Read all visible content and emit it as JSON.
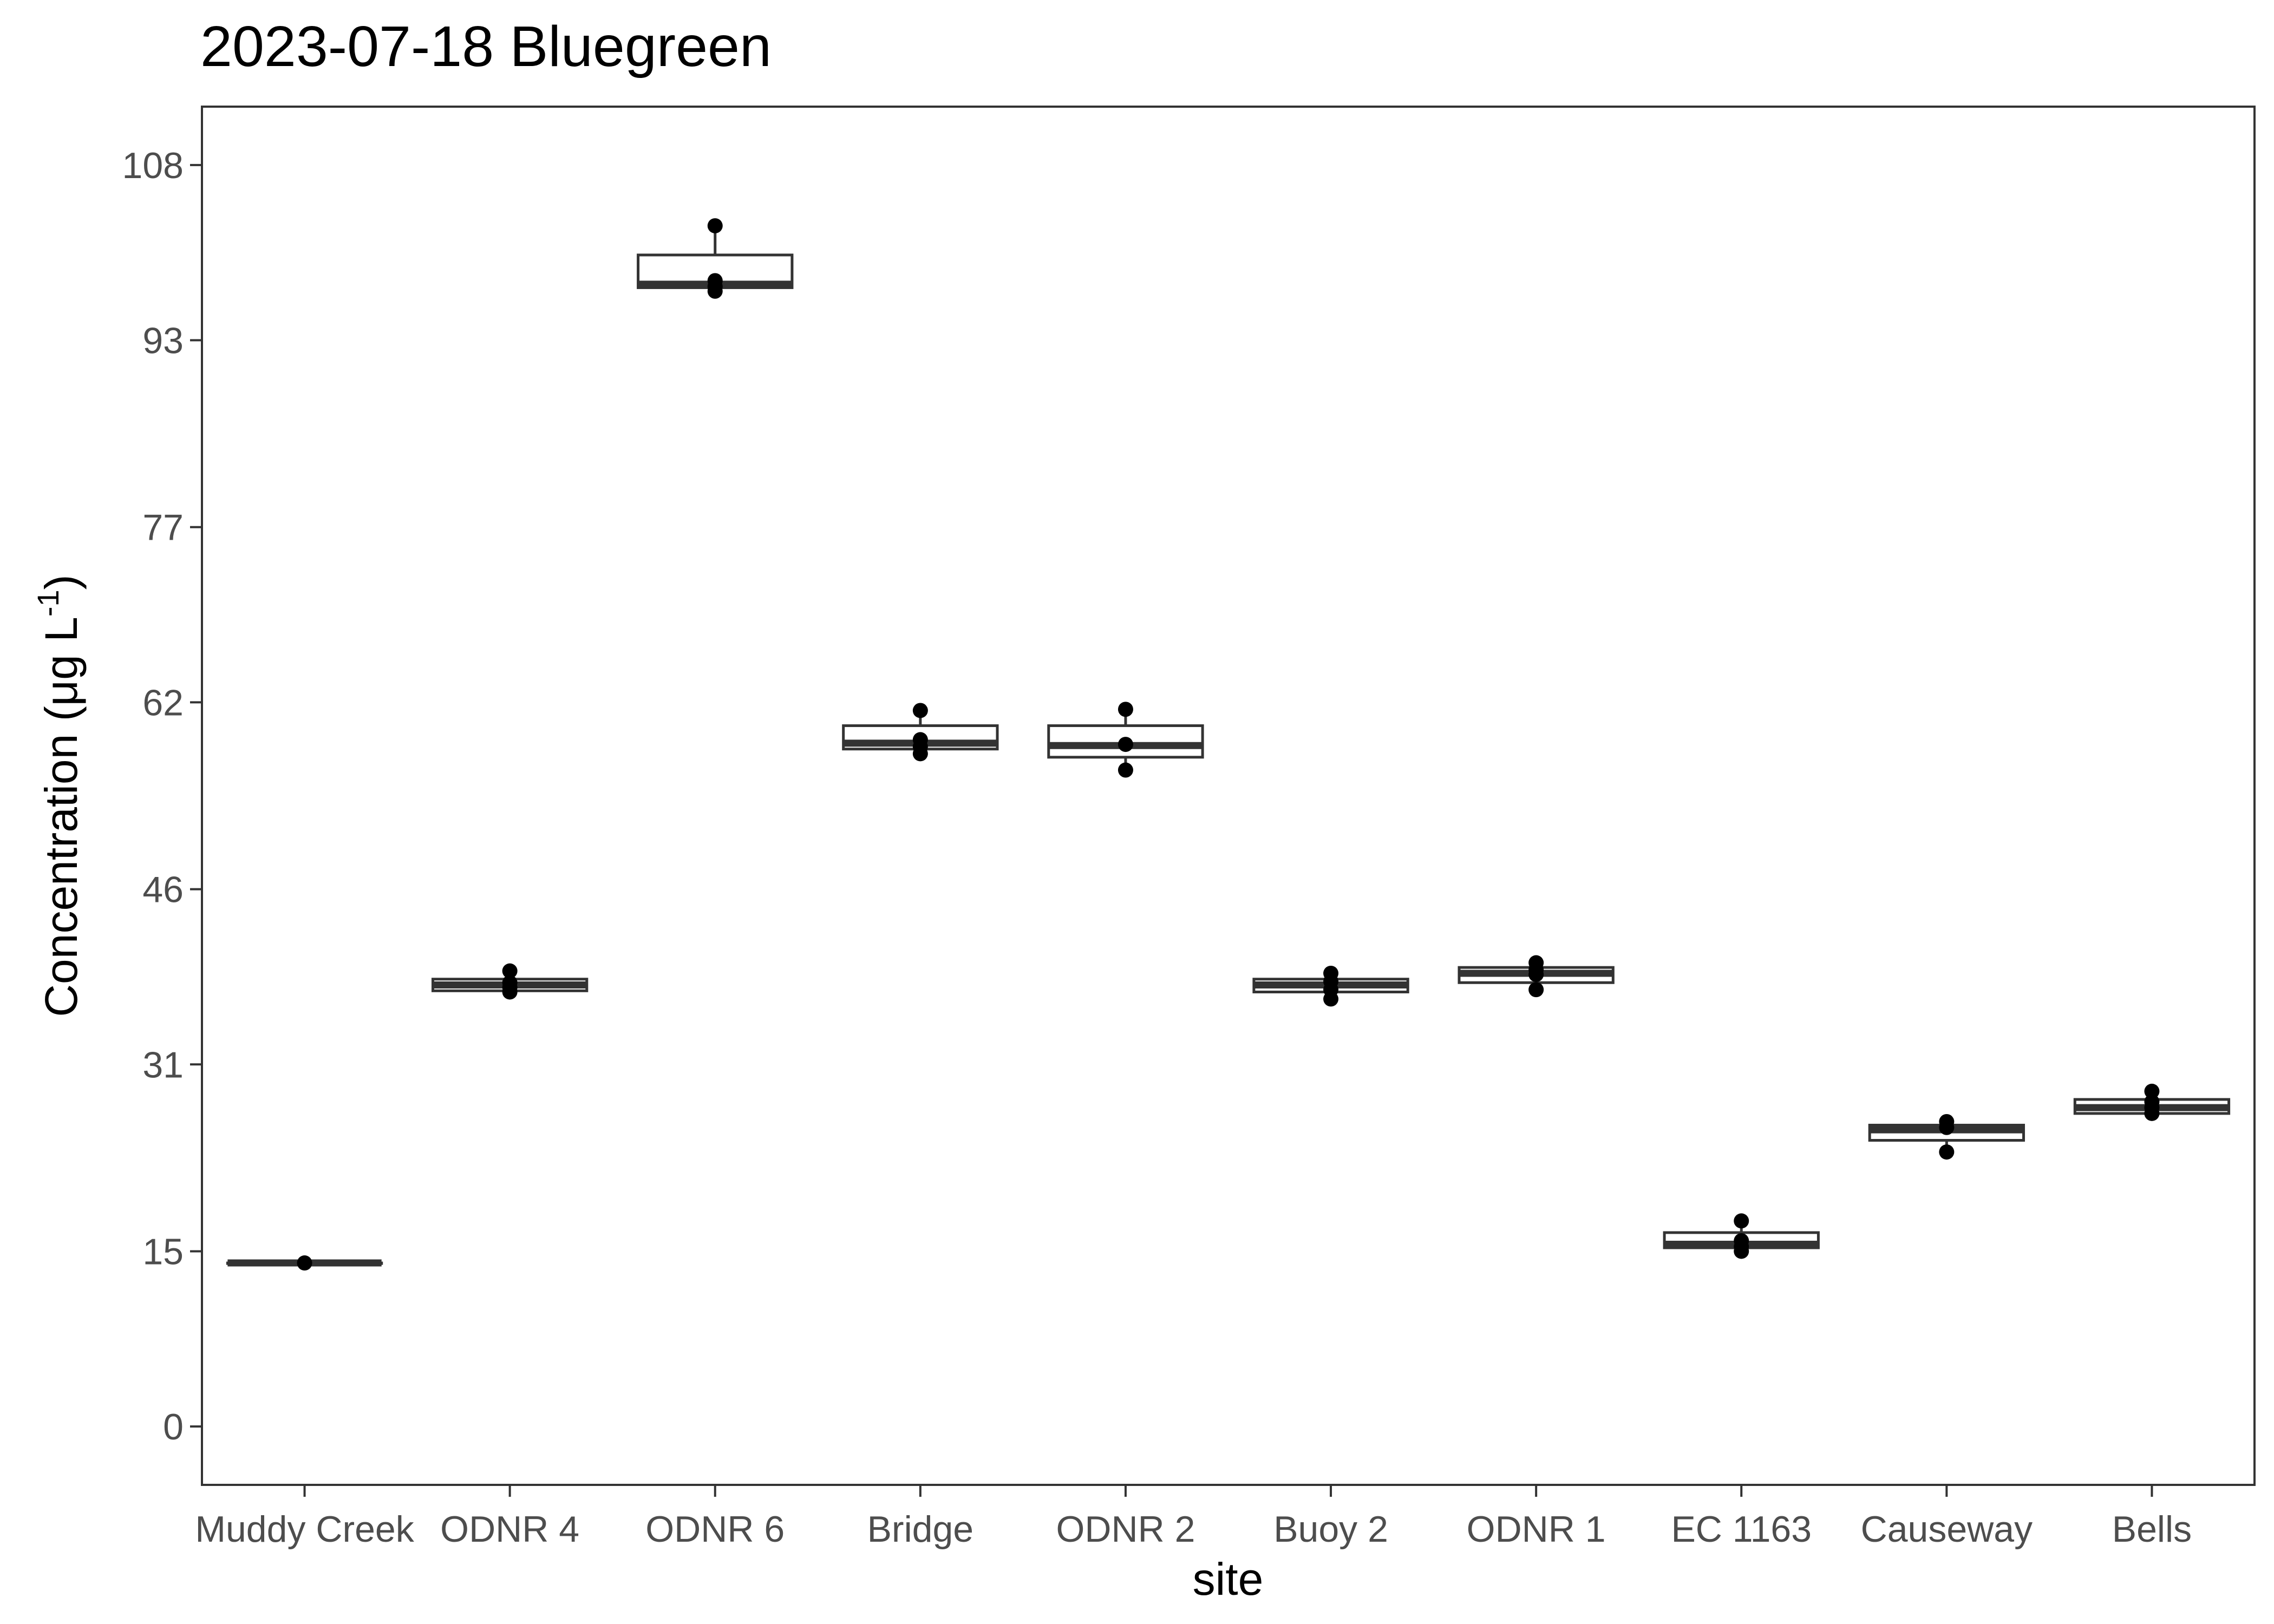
{
  "chart_data": {
    "type": "boxplot",
    "title": "2023-07-18 Bluegreen",
    "xlabel": "site",
    "ylabel": "Concentration (μg L",
    "ylabel_superscript": "-1",
    "ylabel_suffix": ")",
    "ylim": [
      -5,
      113
    ],
    "yticks": [
      0,
      15,
      31,
      46,
      62,
      77,
      93,
      108
    ],
    "ytick_labels": [
      "0",
      "15",
      "31",
      "46",
      "62",
      "77",
      "93",
      "108"
    ],
    "categories": [
      "Muddy Creek",
      "ODNR 4",
      "ODNR 6",
      "Bridge",
      "ODNR 2",
      "Buoy 2",
      "ODNR 1",
      "EC 1163",
      "Causeway",
      "Bells"
    ],
    "boxes": [
      {
        "site": "Muddy Creek",
        "lower_whisker": 14.0,
        "q1": 14.0,
        "median": 14.0,
        "q3": 14.0,
        "upper_whisker": 14.0,
        "points": [
          14.0
        ]
      },
      {
        "site": "ODNR 4",
        "lower_whisker": 37.3,
        "q1": 37.3,
        "median": 37.8,
        "q3": 38.3,
        "upper_whisker": 38.8,
        "points": [
          37.2,
          37.6,
          38.0,
          39.0
        ]
      },
      {
        "site": "ODNR 6",
        "lower_whisker": 97.5,
        "q1": 97.5,
        "median": 97.8,
        "q3": 100.3,
        "upper_whisker": 103.0,
        "points": [
          97.2,
          97.6,
          98.1,
          102.8
        ]
      },
      {
        "site": "Bridge",
        "lower_whisker": 58.0,
        "q1": 58.0,
        "median": 58.5,
        "q3": 60.0,
        "upper_whisker": 61.3,
        "points": [
          57.6,
          58.2,
          58.8,
          61.3
        ]
      },
      {
        "site": "ODNR 2",
        "lower_whisker": 56.2,
        "q1": 57.3,
        "median": 58.3,
        "q3": 60.0,
        "upper_whisker": 61.4,
        "points": [
          56.2,
          58.4,
          61.4
        ]
      },
      {
        "site": "Buoy 2",
        "lower_whisker": 36.6,
        "q1": 37.2,
        "median": 37.8,
        "q3": 38.3,
        "upper_whisker": 38.8,
        "points": [
          36.6,
          37.4,
          38.1,
          38.8
        ]
      },
      {
        "site": "ODNR 1",
        "lower_whisker": 37.4,
        "q1": 38.0,
        "median": 38.8,
        "q3": 39.3,
        "upper_whisker": 39.7,
        "points": [
          37.4,
          38.7,
          39.1,
          39.7
        ]
      },
      {
        "site": "EC 1163",
        "lower_whisker": 15.0,
        "q1": 15.3,
        "median": 15.6,
        "q3": 16.6,
        "upper_whisker": 17.6,
        "points": [
          15.0,
          15.4,
          15.9,
          17.6
        ]
      },
      {
        "site": "Causeway",
        "lower_whisker": 23.5,
        "q1": 24.5,
        "median": 25.4,
        "q3": 25.8,
        "upper_whisker": 26.1,
        "points": [
          23.5,
          25.6,
          26.1
        ]
      },
      {
        "site": "Bells",
        "lower_whisker": 26.8,
        "q1": 26.8,
        "median": 27.3,
        "q3": 28.0,
        "upper_whisker": 28.7,
        "points": [
          26.8,
          27.3,
          27.8,
          28.7
        ]
      }
    ],
    "grid": false,
    "legend": "none"
  }
}
